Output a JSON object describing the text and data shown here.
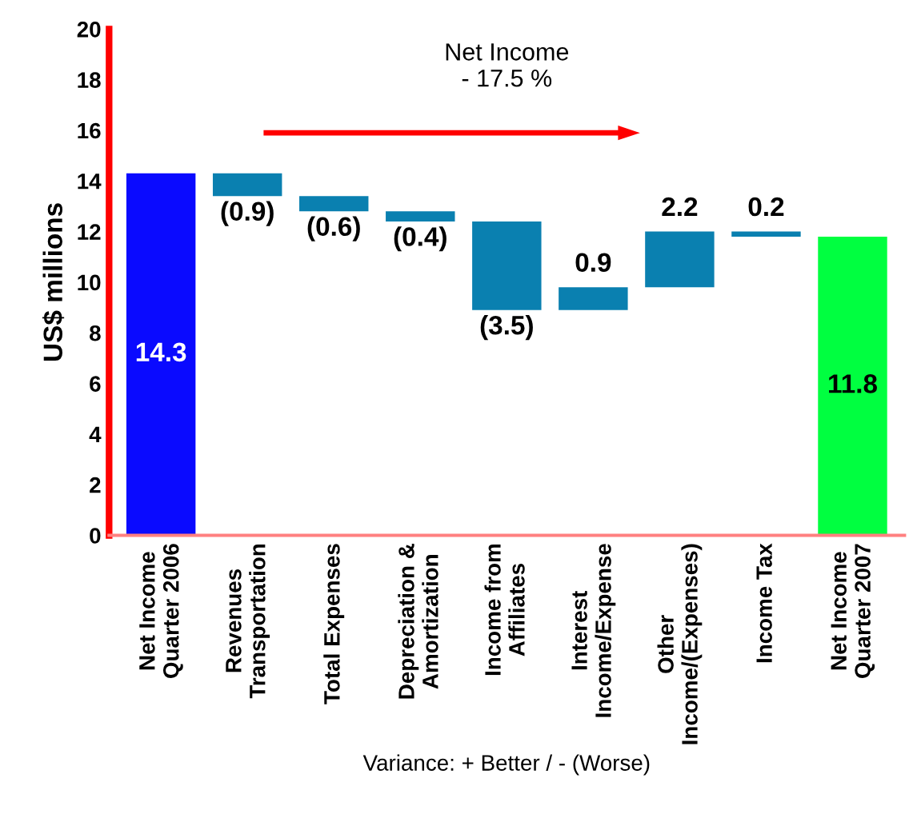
{
  "chart_data": {
    "type": "bar",
    "title": "Net Income\n- 17.5 %",
    "ylabel": "US$ millions",
    "xlabel": "Variance: + Better / - (Worse)",
    "categories": [
      "Net Income\nQuarter 2006",
      "Revenues\nTransportation",
      "Total Expenses",
      "Depreciation &\nAmortization",
      "Income from\nAffiliates",
      "Interest\nIncome/Expense",
      "Other\nIncome/(Expenses)",
      "Income Tax",
      "Net Income\nQuarter 2007"
    ],
    "values": [
      14.3,
      -0.9,
      -0.6,
      -0.4,
      -3.5,
      0.9,
      2.2,
      0.2,
      11.8
    ],
    "base": [
      0,
      14.3,
      13.4,
      12.8,
      12.4,
      8.9,
      9.8,
      11.8,
      0
    ],
    "colors": [
      "#0a0aff",
      "#0a80b0",
      "#0a80b0",
      "#0a80b0",
      "#0a80b0",
      "#0a80b0",
      "#0a80b0",
      "#0a80b0",
      "#00ff40"
    ],
    "value_labels": [
      "14.3",
      "(0.9)",
      "(0.6)",
      "(0.4)",
      "(3.5)",
      "0.9",
      "2.2",
      "0.2",
      "11.8"
    ],
    "ylim": [
      0,
      20
    ],
    "yticks": [
      0,
      2,
      4,
      6,
      8,
      10,
      12,
      14,
      16,
      18,
      20
    ],
    "grid": false,
    "legend": false
  }
}
